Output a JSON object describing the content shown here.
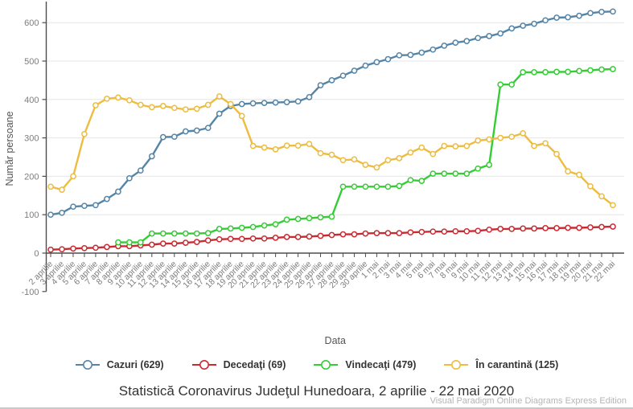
{
  "chart_data": {
    "type": "line",
    "title": "Statistică Coronavirus Judeţul Hunedoara, 2 aprilie - 22 mai 2020",
    "watermark": "Visual Paradigm Online Diagrams Express Edition",
    "xlabel": "Data",
    "ylabel": "Număr persoane",
    "ylim": [
      -100,
      650
    ],
    "y_ticks": [
      600,
      500,
      400,
      300,
      200,
      100,
      0,
      -100
    ],
    "grid": true,
    "legend_position": "bottom",
    "marker": "open-circle",
    "x": [
      "2 aprilie",
      "3 aprilie",
      "4 aprilie",
      "5 aprilie",
      "6 aprilie",
      "7 aprilie",
      "8 aprilie",
      "9 aprilie",
      "10 aprilie",
      "11 aprilie",
      "12 aprilie",
      "13 aprilie",
      "14 aprilie",
      "15 aprilie",
      "16 aprilie",
      "17 aprilie",
      "18 aprilie",
      "19 aprilie",
      "20 aprilie",
      "21 aprilie",
      "22 aprilie",
      "23 aprilie",
      "24 aprilie",
      "25 aprilie",
      "26 aprilie",
      "27 aprilie",
      "28 aprilie",
      "29 aprilie",
      "30 aprilie",
      "1 mai",
      "2 mai",
      "3 mai",
      "4 mai",
      "5 mai",
      "6 mai",
      "7 mai",
      "8 mai",
      "9 mai",
      "10 mai",
      "11 mai",
      "12 mai",
      "13 mai",
      "14 mai",
      "15 mai",
      "16 mai",
      "17 mai",
      "18 mai",
      "19 mai",
      "20 mai",
      "21 mai",
      "22 mai"
    ],
    "series": [
      {
        "name": "Cazuri (629)",
        "color": "#5485a8",
        "values": [
          100,
          105,
          121,
          123,
          125,
          141,
          160,
          195,
          215,
          252,
          302,
          303,
          317,
          319,
          326,
          363,
          383,
          388,
          390,
          391,
          392,
          393,
          395,
          406,
          437,
          450,
          462,
          475,
          488,
          497,
          505,
          515,
          516,
          522,
          530,
          540,
          548,
          552,
          560,
          565,
          572,
          585,
          592,
          597,
          606,
          613,
          614,
          618,
          625,
          628,
          629
        ]
      },
      {
        "name": "Decedaţi (69)",
        "color": "#cc2a31",
        "values": [
          9,
          10,
          12,
          13,
          14,
          16,
          18,
          18,
          20,
          22,
          25,
          25,
          27,
          29,
          33,
          36,
          37,
          37,
          38,
          38,
          40,
          42,
          42,
          43,
          45,
          47,
          49,
          49,
          51,
          52,
          52,
          52,
          54,
          55,
          56,
          56,
          57,
          57,
          58,
          61,
          63,
          63,
          64,
          64,
          65,
          65,
          66,
          66,
          67,
          68,
          69
        ]
      },
      {
        "name": "Vindecaţi (479)",
        "color": "#35cd35",
        "values": [
          null,
          null,
          null,
          null,
          null,
          null,
          28,
          28,
          28,
          51,
          51,
          51,
          51,
          51,
          52,
          63,
          64,
          66,
          68,
          72,
          75,
          87,
          89,
          91,
          93,
          95,
          173,
          173,
          173,
          173,
          173,
          175,
          190,
          188,
          207,
          207,
          207,
          207,
          220,
          230,
          439,
          439,
          471,
          471,
          471,
          472,
          472,
          474,
          476,
          478,
          479
        ]
      },
      {
        "name": "În carantină (125)",
        "color": "#eebc3e",
        "values": [
          173,
          165,
          200,
          310,
          385,
          402,
          405,
          398,
          386,
          380,
          383,
          378,
          374,
          376,
          386,
          408,
          388,
          357,
          279,
          275,
          270,
          280,
          280,
          284,
          260,
          256,
          242,
          244,
          230,
          223,
          242,
          247,
          262,
          275,
          258,
          279,
          278,
          279,
          293,
          296,
          300,
          303,
          312,
          279,
          286,
          258,
          213,
          204,
          174,
          148,
          125
        ]
      }
    ]
  }
}
